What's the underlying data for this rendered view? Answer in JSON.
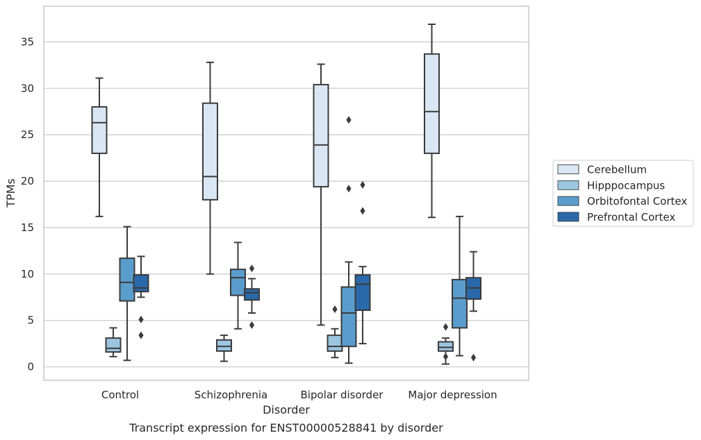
{
  "chart_data": {
    "type": "box",
    "title": "Transcript expression for ENST00000528841 by disorder",
    "xlabel": "Disorder",
    "ylabel": "TPMs",
    "ylim": [
      -1.5,
      38.5
    ],
    "yticks": [
      0,
      5,
      10,
      15,
      20,
      25,
      30,
      35
    ],
    "grid": "horizontal",
    "legend_position": "right",
    "categories": [
      "Control",
      "Schizophrenia",
      "Bipolar disorder",
      "Major depression"
    ],
    "series": [
      {
        "name": "Cerebellum",
        "color": "#d9e6f3",
        "boxes": [
          {
            "whisker_low": 16.2,
            "q1": 23.0,
            "median": 26.3,
            "q3": 28.0,
            "whisker_high": 31.1,
            "outliers": []
          },
          {
            "whisker_low": 10.0,
            "q1": 18.0,
            "median": 20.5,
            "q3": 28.4,
            "whisker_high": 32.8,
            "outliers": []
          },
          {
            "whisker_low": 4.5,
            "q1": 19.4,
            "median": 23.9,
            "q3": 30.4,
            "whisker_high": 32.6,
            "outliers": []
          },
          {
            "whisker_low": 16.1,
            "q1": 23.0,
            "median": 27.5,
            "q3": 33.7,
            "whisker_high": 36.9,
            "outliers": []
          }
        ]
      },
      {
        "name": "Hipppocampus",
        "color": "#9cc6e0",
        "boxes": [
          {
            "whisker_low": 1.1,
            "q1": 1.6,
            "median": 2.0,
            "q3": 3.1,
            "whisker_high": 4.2,
            "outliers": []
          },
          {
            "whisker_low": 0.6,
            "q1": 1.7,
            "median": 2.2,
            "q3": 2.9,
            "whisker_high": 3.4,
            "outliers": []
          },
          {
            "whisker_low": 1.0,
            "q1": 1.7,
            "median": 2.2,
            "q3": 3.4,
            "whisker_high": 4.1,
            "outliers": [
              6.2
            ]
          },
          {
            "whisker_low": 0.3,
            "q1": 1.7,
            "median": 2.1,
            "q3": 2.7,
            "whisker_high": 3.1,
            "outliers": [
              4.3,
              1.1
            ]
          }
        ]
      },
      {
        "name": "Orbitofontal Cortex",
        "color": "#5a9ccc",
        "boxes": [
          {
            "whisker_low": 0.7,
            "q1": 7.1,
            "median": 9.1,
            "q3": 11.7,
            "whisker_high": 15.1,
            "outliers": []
          },
          {
            "whisker_low": 4.1,
            "q1": 7.7,
            "median": 9.6,
            "q3": 10.5,
            "whisker_high": 13.4,
            "outliers": []
          },
          {
            "whisker_low": 0.4,
            "q1": 2.2,
            "median": 5.8,
            "q3": 8.6,
            "whisker_high": 11.3,
            "outliers": [
              26.6,
              19.2
            ]
          },
          {
            "whisker_low": 1.2,
            "q1": 4.2,
            "median": 7.4,
            "q3": 9.4,
            "whisker_high": 16.2,
            "outliers": []
          }
        ]
      },
      {
        "name": "Prefrontal Cortex",
        "color": "#2a69a9",
        "boxes": [
          {
            "whisker_low": 7.5,
            "q1": 8.1,
            "median": 8.5,
            "q3": 9.9,
            "whisker_high": 11.9,
            "outliers": [
              5.1,
              3.4
            ]
          },
          {
            "whisker_low": 5.8,
            "q1": 7.2,
            "median": 8.0,
            "q3": 8.4,
            "whisker_high": 9.5,
            "outliers": [
              10.6,
              4.5
            ]
          },
          {
            "whisker_low": 2.5,
            "q1": 6.1,
            "median": 8.9,
            "q3": 9.9,
            "whisker_high": 10.8,
            "outliers": [
              19.6,
              16.8
            ]
          },
          {
            "whisker_low": 6.0,
            "q1": 7.3,
            "median": 8.5,
            "q3": 9.6,
            "whisker_high": 12.4,
            "outliers": [
              1.0
            ]
          }
        ]
      }
    ]
  }
}
